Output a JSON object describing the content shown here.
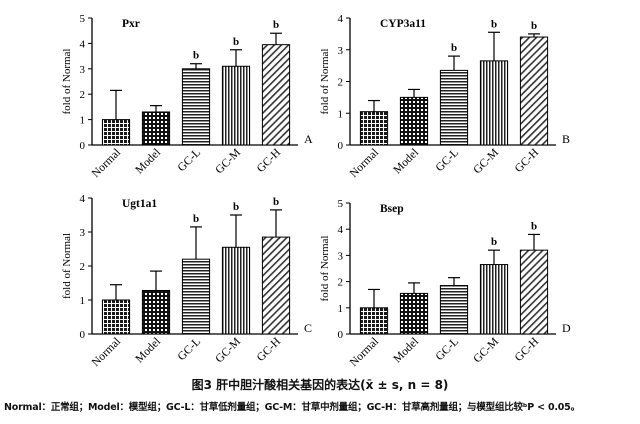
{
  "figure": {
    "caption": "图3  肝中胆汁酸相关基因的表达(x̄ ± s, n = 8)",
    "legend": "Normal：正常组；Model：模型组；GC-L：甘草低剂量组；GC-M：甘草中剂量组；GC-H：甘草高剂量组；与模型组比较ᵇP < 0.05。"
  },
  "chart_data": [
    {
      "type": "bar",
      "title": "Pxr",
      "panel_label": "A",
      "xlabel": "",
      "ylabel": "fold of Normal",
      "ylim": [
        0,
        5
      ],
      "yticks": [
        "0",
        "1",
        "2",
        "3",
        "4",
        "5"
      ],
      "categories": [
        "Normal",
        "Model",
        "GC-L",
        "GC-M",
        "GC-H"
      ],
      "values": [
        1.0,
        1.3,
        3.0,
        3.1,
        3.95
      ],
      "errors": [
        1.15,
        0.25,
        0.2,
        0.65,
        0.45
      ],
      "significance": [
        "",
        "",
        "b",
        "b",
        "b"
      ]
    },
    {
      "type": "bar",
      "title": "CYP3a11",
      "panel_label": "B",
      "xlabel": "",
      "ylabel": "fold of Normal",
      "ylim": [
        0,
        4
      ],
      "yticks": [
        "0",
        "1",
        "2",
        "3",
        "4"
      ],
      "categories": [
        "Normal",
        "Model",
        "GC-L",
        "GC-M",
        "GC-H"
      ],
      "values": [
        1.05,
        1.5,
        2.35,
        2.65,
        3.4
      ],
      "errors": [
        0.35,
        0.25,
        0.45,
        0.9,
        0.1
      ],
      "significance": [
        "",
        "",
        "b",
        "b",
        "b"
      ]
    },
    {
      "type": "bar",
      "title": "Ugt1a1",
      "panel_label": "C",
      "xlabel": "",
      "ylabel": "fold of Normal",
      "ylim": [
        0,
        4
      ],
      "yticks": [
        "0",
        "1",
        "2",
        "3",
        "4"
      ],
      "categories": [
        "Normal",
        "Model",
        "GC-L",
        "GC-M",
        "GC-H"
      ],
      "values": [
        1.0,
        1.28,
        2.2,
        2.55,
        2.85
      ],
      "errors": [
        0.45,
        0.57,
        0.95,
        0.95,
        0.8
      ],
      "significance": [
        "",
        "",
        "b",
        "b",
        "b"
      ]
    },
    {
      "type": "bar",
      "title": "Bsep",
      "panel_label": "D",
      "xlabel": "",
      "ylabel": "fold of Normal",
      "ylim": [
        0,
        5
      ],
      "yticks": [
        "0",
        "1",
        "2",
        "3",
        "4",
        "5"
      ],
      "categories": [
        "Normal",
        "Model",
        "GC-L",
        "GC-M",
        "GC-H"
      ],
      "values": [
        1.0,
        1.55,
        1.85,
        2.65,
        3.2
      ],
      "errors": [
        0.7,
        0.4,
        0.3,
        0.55,
        0.6
      ],
      "significance": [
        "",
        "",
        "",
        "b",
        "b"
      ]
    }
  ]
}
